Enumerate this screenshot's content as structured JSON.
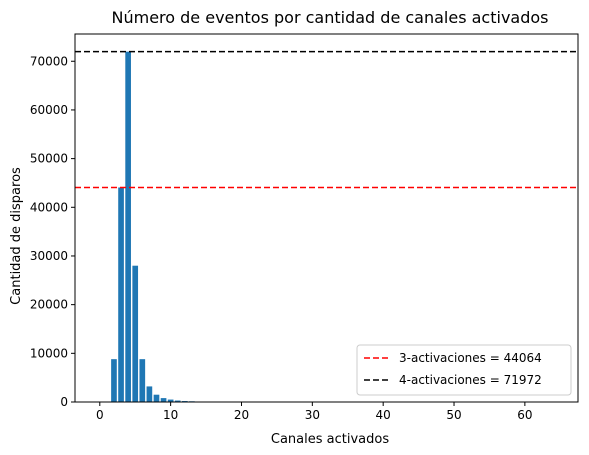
{
  "chart_data": {
    "type": "bar",
    "title": "Número de eventos por cantidad de canales activados",
    "xlabel": "Canales activados",
    "ylabel": "Cantidad de disparos",
    "xlim": [
      -3.5,
      67.5
    ],
    "ylim": [
      0,
      75600
    ],
    "x_ticks": [
      0,
      10,
      20,
      30,
      40,
      50,
      60
    ],
    "y_ticks": [
      0,
      10000,
      20000,
      30000,
      40000,
      50000,
      60000,
      70000
    ],
    "grid": false,
    "bar_color": "#1f77b4",
    "bar_width": 0.8,
    "series": [
      {
        "x": [
          2,
          3,
          4,
          5,
          6,
          7,
          8,
          9,
          10,
          11,
          12,
          13,
          14,
          15,
          16
        ],
        "values": [
          8800,
          44064,
          71972,
          28000,
          8800,
          3200,
          1500,
          800,
          500,
          300,
          200,
          150,
          100,
          80,
          50
        ]
      }
    ],
    "reference_lines": [
      {
        "y": 44064,
        "color": "#ff0000",
        "style": "dashed",
        "label": "3-activaciones = 44064"
      },
      {
        "y": 71972,
        "color": "#000000",
        "style": "dashed",
        "label": "4-activaciones = 71972"
      }
    ],
    "legend_position": "lower-right"
  }
}
